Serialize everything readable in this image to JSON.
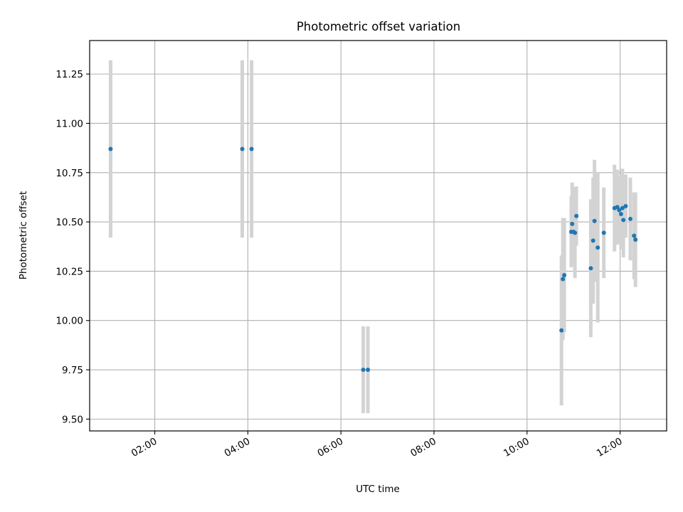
{
  "chart_data": {
    "type": "scatter",
    "title": "Photometric offset variation",
    "xlabel": "UTC time",
    "ylabel": "Photometric offset",
    "x_unit": "hours UTC",
    "xlim": [
      0.6,
      13.0
    ],
    "ylim": [
      9.44,
      11.42
    ],
    "x_ticks": [
      {
        "value": 2,
        "label": "02:00"
      },
      {
        "value": 4,
        "label": "04:00"
      },
      {
        "value": 6,
        "label": "06:00"
      },
      {
        "value": 8,
        "label": "08:00"
      },
      {
        "value": 10,
        "label": "10:00"
      },
      {
        "value": 12,
        "label": "12:00"
      }
    ],
    "y_ticks": [
      {
        "value": 9.5,
        "label": "9.50"
      },
      {
        "value": 9.75,
        "label": "9.75"
      },
      {
        "value": 10.0,
        "label": "10.00"
      },
      {
        "value": 10.25,
        "label": "10.25"
      },
      {
        "value": 10.5,
        "label": "10.50"
      },
      {
        "value": 10.75,
        "label": "10.75"
      },
      {
        "value": 11.0,
        "label": "11.00"
      },
      {
        "value": 11.25,
        "label": "11.25"
      }
    ],
    "grid": true,
    "colors": {
      "point": "#1f77b4",
      "errorbar": "#d3d3d3",
      "grid": "#b0b0b0"
    },
    "points": [
      {
        "x": 1.05,
        "y": 10.87,
        "yerr": 0.45
      },
      {
        "x": 3.88,
        "y": 10.87,
        "yerr": 0.45
      },
      {
        "x": 4.08,
        "y": 10.87,
        "yerr": 0.45
      },
      {
        "x": 6.48,
        "y": 9.75,
        "yerr": 0.22
      },
      {
        "x": 6.58,
        "y": 9.75,
        "yerr": 0.22
      },
      {
        "x": 10.74,
        "y": 9.95,
        "yerr": 0.38
      },
      {
        "x": 10.77,
        "y": 10.21,
        "yerr": 0.31
      },
      {
        "x": 10.8,
        "y": 10.23,
        "yerr": 0.29
      },
      {
        "x": 10.95,
        "y": 10.45,
        "yerr": 0.18
      },
      {
        "x": 10.97,
        "y": 10.49,
        "yerr": 0.21
      },
      {
        "x": 11.0,
        "y": 10.45,
        "yerr": 0.17
      },
      {
        "x": 11.03,
        "y": 10.445,
        "yerr": 0.23
      },
      {
        "x": 11.06,
        "y": 10.53,
        "yerr": 0.15
      },
      {
        "x": 11.37,
        "y": 10.265,
        "yerr": 0.35
      },
      {
        "x": 11.42,
        "y": 10.405,
        "yerr": 0.32
      },
      {
        "x": 11.45,
        "y": 10.505,
        "yerr": 0.31
      },
      {
        "x": 11.52,
        "y": 10.37,
        "yerr": 0.38
      },
      {
        "x": 11.65,
        "y": 10.445,
        "yerr": 0.23
      },
      {
        "x": 11.88,
        "y": 10.57,
        "yerr": 0.22
      },
      {
        "x": 11.94,
        "y": 10.575,
        "yerr": 0.19
      },
      {
        "x": 11.98,
        "y": 10.56,
        "yerr": 0.17
      },
      {
        "x": 12.02,
        "y": 10.54,
        "yerr": 0.18
      },
      {
        "x": 12.05,
        "y": 10.57,
        "yerr": 0.2
      },
      {
        "x": 12.07,
        "y": 10.51,
        "yerr": 0.19
      },
      {
        "x": 12.12,
        "y": 10.58,
        "yerr": 0.16
      },
      {
        "x": 12.22,
        "y": 10.515,
        "yerr": 0.21
      },
      {
        "x": 12.3,
        "y": 10.43,
        "yerr": 0.22
      },
      {
        "x": 12.33,
        "y": 10.41,
        "yerr": 0.24
      }
    ]
  }
}
